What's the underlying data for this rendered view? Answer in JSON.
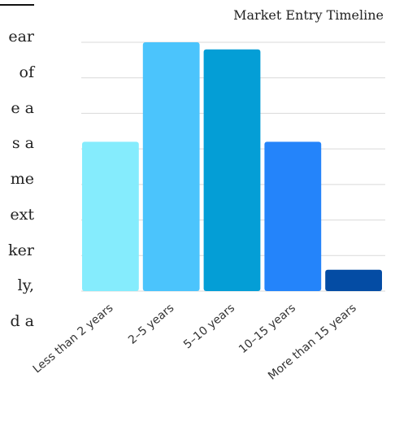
{
  "side_text": {
    "fragments": [
      "ear",
      "of",
      "e a",
      "s a",
      "me",
      "ext",
      "ker",
      "ly,",
      "d a"
    ]
  },
  "chart_data": {
    "type": "bar",
    "title": "Market Entry Timeline",
    "xlabel": "",
    "ylabel": "",
    "categories": [
      "Less than 2 years",
      "2–5 years",
      "5–10 years",
      "10–15 years",
      "More than 15 years"
    ],
    "values": [
      21,
      35,
      34,
      21,
      3
    ],
    "ylim": [
      0,
      35
    ],
    "grid": true,
    "colors": [
      "#85ecfd",
      "#4bc4fc",
      "#049ed6",
      "#2484fa",
      "#044ca4"
    ]
  }
}
